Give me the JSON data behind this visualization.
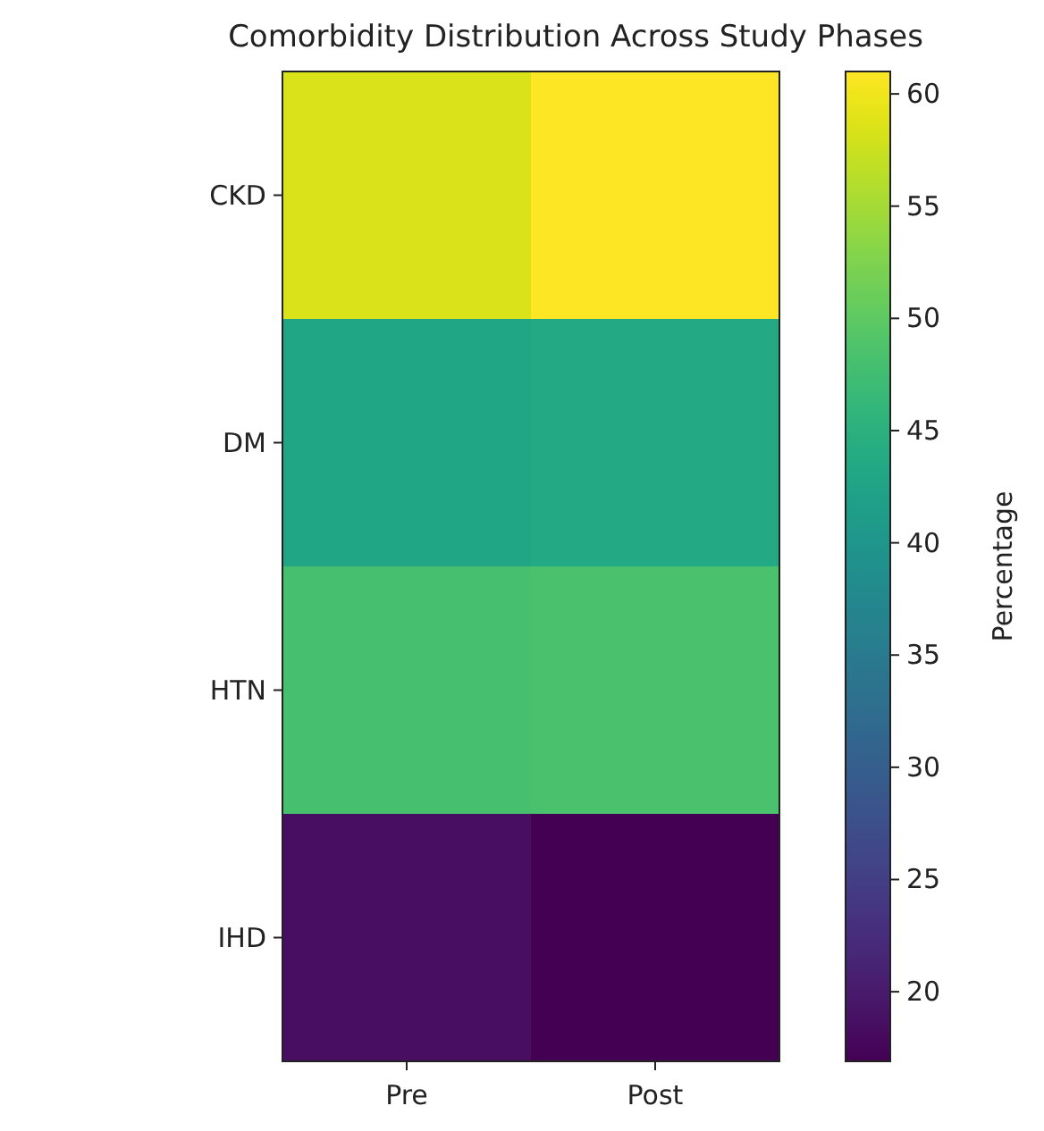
{
  "chart_data": {
    "type": "heatmap",
    "title": "Comorbidity Distribution Across Study Phases",
    "clabel": "Percentage",
    "categories": [
      "Pre",
      "Post"
    ],
    "y_categories": [
      "CKD",
      "DM",
      "HTN",
      "IHD"
    ],
    "cells": [
      [
        58.5,
        61
      ],
      [
        43,
        43.5
      ],
      [
        48,
        48.3
      ],
      [
        18.5,
        16.9
      ]
    ],
    "clim": [
      16.9,
      61
    ],
    "cticks": [
      20,
      25,
      30,
      35,
      40,
      45,
      50,
      55,
      60
    ]
  }
}
